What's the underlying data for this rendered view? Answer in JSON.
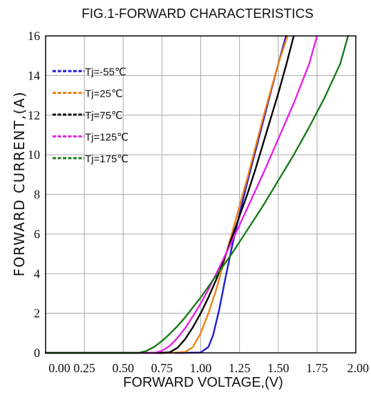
{
  "chart_data": {
    "type": "line",
    "title": "FIG.1-FORWARD CHARACTERISTICS",
    "xlabel": "FORWARD VOLTAGE,(V)",
    "ylabel": "FORWARD CURRENT,(A)",
    "xlim": [
      0,
      2.0
    ],
    "ylim": [
      0,
      16
    ],
    "x_ticks": [
      "0.00",
      "0.25",
      "0.50",
      "0.75",
      "1.00",
      "1.25",
      "1.50",
      "1.75",
      "2.00"
    ],
    "y_ticks": [
      "0",
      "2",
      "4",
      "6",
      "8",
      "10",
      "12",
      "14",
      "16"
    ],
    "x_tick_values": [
      0,
      0.25,
      0.5,
      0.75,
      1.0,
      1.25,
      1.5,
      1.75,
      2.0
    ],
    "y_tick_values": [
      0,
      2,
      4,
      6,
      8,
      10,
      12,
      14,
      16
    ],
    "grid": true,
    "legend_position": "top-left",
    "series": [
      {
        "name": "Tj=-55℃",
        "color": "#1a1ad6",
        "x": [
          0.0,
          0.9,
          1.0,
          1.05,
          1.08,
          1.12,
          1.16,
          1.2,
          1.25,
          1.3,
          1.35,
          1.4,
          1.45,
          1.5,
          1.55
        ],
        "y": [
          0.0,
          0.0,
          0.02,
          0.3,
          0.9,
          2.2,
          3.8,
          5.3,
          7.0,
          8.6,
          10.1,
          11.6,
          13.1,
          14.6,
          16.0
        ]
      },
      {
        "name": "Tj=25℃",
        "color": "#f08010",
        "x": [
          0.0,
          0.8,
          0.9,
          0.95,
          1.0,
          1.05,
          1.1,
          1.15,
          1.2,
          1.25,
          1.3,
          1.35,
          1.4,
          1.45,
          1.5,
          1.56
        ],
        "y": [
          0.0,
          0.0,
          0.05,
          0.3,
          1.0,
          2.0,
          3.2,
          4.6,
          6.0,
          7.4,
          8.8,
          10.3,
          11.8,
          13.2,
          14.6,
          16.0
        ]
      },
      {
        "name": "Tj=75℃",
        "color": "#000000",
        "x": [
          0.0,
          0.75,
          0.8,
          0.85,
          0.9,
          0.95,
          1.0,
          1.05,
          1.1,
          1.15,
          1.2,
          1.25,
          1.3,
          1.35,
          1.4,
          1.45,
          1.5,
          1.55,
          1.6
        ],
        "y": [
          0.0,
          0.0,
          0.03,
          0.25,
          0.7,
          1.3,
          2.0,
          2.8,
          3.7,
          4.7,
          5.8,
          6.9,
          8.0,
          9.2,
          10.5,
          11.8,
          13.1,
          14.5,
          16.0
        ]
      },
      {
        "name": "Tj=125℃",
        "color": "#e81ee8",
        "x": [
          0.0,
          0.7,
          0.75,
          0.8,
          0.85,
          0.9,
          0.95,
          1.0,
          1.05,
          1.1,
          1.15,
          1.2,
          1.3,
          1.4,
          1.5,
          1.6,
          1.7,
          1.75
        ],
        "y": [
          0.0,
          0.0,
          0.1,
          0.35,
          0.75,
          1.25,
          1.85,
          2.5,
          3.2,
          4.0,
          4.8,
          5.6,
          7.3,
          9.0,
          10.8,
          12.6,
          14.6,
          16.0
        ]
      },
      {
        "name": "Tj=175℃",
        "color": "#177a17",
        "x": [
          0.0,
          0.6,
          0.65,
          0.7,
          0.75,
          0.8,
          0.85,
          0.9,
          0.95,
          1.0,
          1.05,
          1.1,
          1.2,
          1.3,
          1.4,
          1.5,
          1.6,
          1.7,
          1.8,
          1.9,
          1.95
        ],
        "y": [
          0.0,
          0.0,
          0.1,
          0.3,
          0.6,
          0.95,
          1.35,
          1.8,
          2.3,
          2.8,
          3.35,
          3.9,
          5.0,
          6.2,
          7.4,
          8.7,
          10.0,
          11.4,
          12.9,
          14.6,
          16.0
        ]
      }
    ]
  }
}
